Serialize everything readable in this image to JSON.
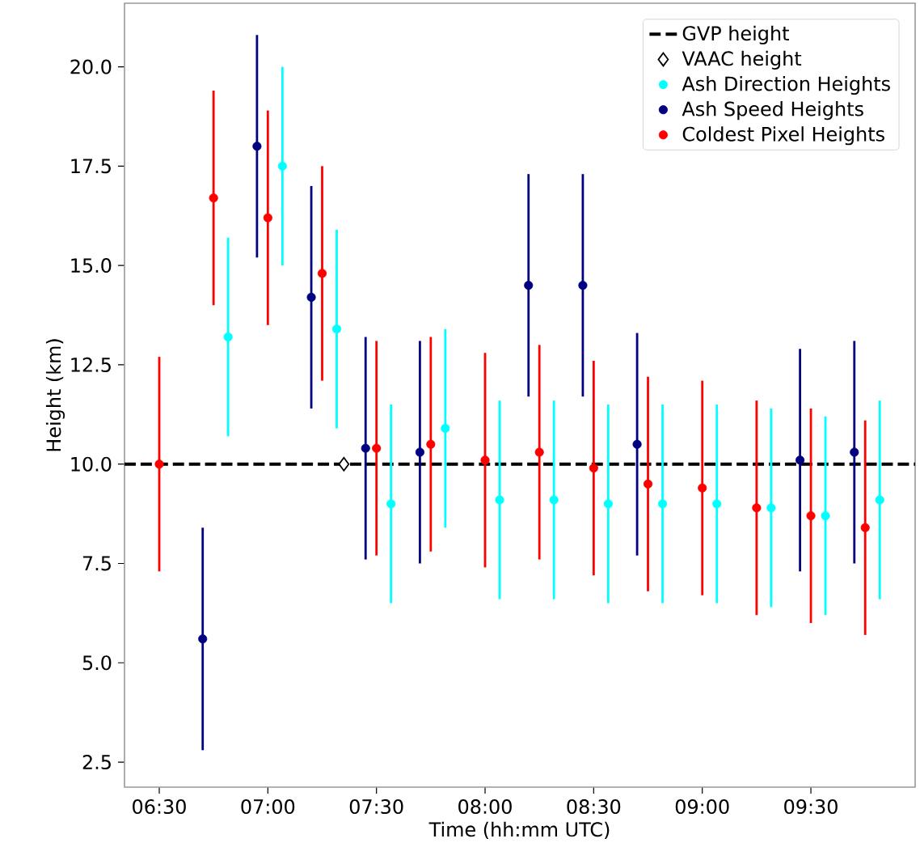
{
  "chart_data": {
    "type": "scatter",
    "xlabel": "Time (hh:mm UTC)",
    "ylabel": "Height (km)",
    "xlim": [
      6.34,
      9.98
    ],
    "ylim": [
      1.87,
      21.6
    ],
    "xticks": [
      {
        "value": 6.5,
        "label": "06:30"
      },
      {
        "value": 7.0,
        "label": "07:00"
      },
      {
        "value": 7.5,
        "label": "07:30"
      },
      {
        "value": 8.0,
        "label": "08:00"
      },
      {
        "value": 8.5,
        "label": "08:30"
      },
      {
        "value": 9.0,
        "label": "09:00"
      },
      {
        "value": 9.5,
        "label": "09:30"
      }
    ],
    "yticks": [
      2.5,
      {
        "value": 5,
        "label": "5.0"
      },
      7.5,
      {
        "value": 10,
        "label": "10.0"
      },
      12.5,
      {
        "value": 15,
        "label": "15.0"
      },
      17.5,
      {
        "value": 20,
        "label": "20.0"
      }
    ],
    "marker": "circle",
    "legend": "top right",
    "ref_lines": [
      {
        "axis": "y",
        "value": 10,
        "label": "GVP height",
        "color": "#000000",
        "line_style": "dashed"
      }
    ],
    "series": [
      {
        "name": "VAAC height",
        "color": "#000000",
        "marker": "diamond",
        "x": [
          7.35
        ],
        "values": [
          10.0
        ]
      },
      {
        "name": "Ash Direction Heights",
        "color": "#00ffff",
        "x": [
          6.817,
          7.067,
          7.317,
          7.567,
          7.817,
          8.067,
          8.317,
          8.567,
          8.817,
          9.067,
          9.317,
          9.567,
          9.817
        ],
        "values": [
          13.2,
          17.5,
          13.4,
          9.0,
          10.9,
          9.1,
          9.1,
          9.0,
          9.0,
          9.0,
          8.9,
          8.7,
          9.1
        ],
        "errors": [
          2.5,
          2.5,
          2.5,
          2.5,
          2.5,
          2.5,
          2.5,
          2.5,
          2.5,
          2.5,
          2.5,
          2.5,
          2.5
        ]
      },
      {
        "name": "Ash Speed Heights",
        "color": "#000080",
        "x": [
          6.7,
          6.95,
          7.2,
          7.45,
          7.7,
          8.2,
          8.45,
          8.7,
          9.45,
          9.7
        ],
        "values": [
          5.6,
          18.0,
          14.2,
          10.4,
          10.3,
          14.5,
          14.5,
          10.5,
          10.1,
          10.3
        ],
        "errors": [
          2.8,
          2.8,
          2.8,
          2.8,
          2.8,
          2.8,
          2.8,
          2.8,
          2.8,
          2.8
        ]
      },
      {
        "name": "Coldest Pixel Heights",
        "color": "#ff0000",
        "x": [
          6.5,
          6.75,
          7.0,
          7.25,
          7.5,
          7.75,
          8.0,
          8.25,
          8.5,
          8.75,
          9.0,
          9.25,
          9.5,
          9.75
        ],
        "values": [
          10.0,
          16.7,
          16.2,
          14.8,
          10.4,
          10.5,
          10.1,
          10.3,
          9.9,
          9.5,
          9.4,
          8.9,
          8.7,
          8.4
        ],
        "errors": [
          2.7,
          2.7,
          2.7,
          2.7,
          2.7,
          2.7,
          2.7,
          2.7,
          2.7,
          2.7,
          2.7,
          2.7,
          2.7,
          2.7
        ]
      }
    ]
  }
}
